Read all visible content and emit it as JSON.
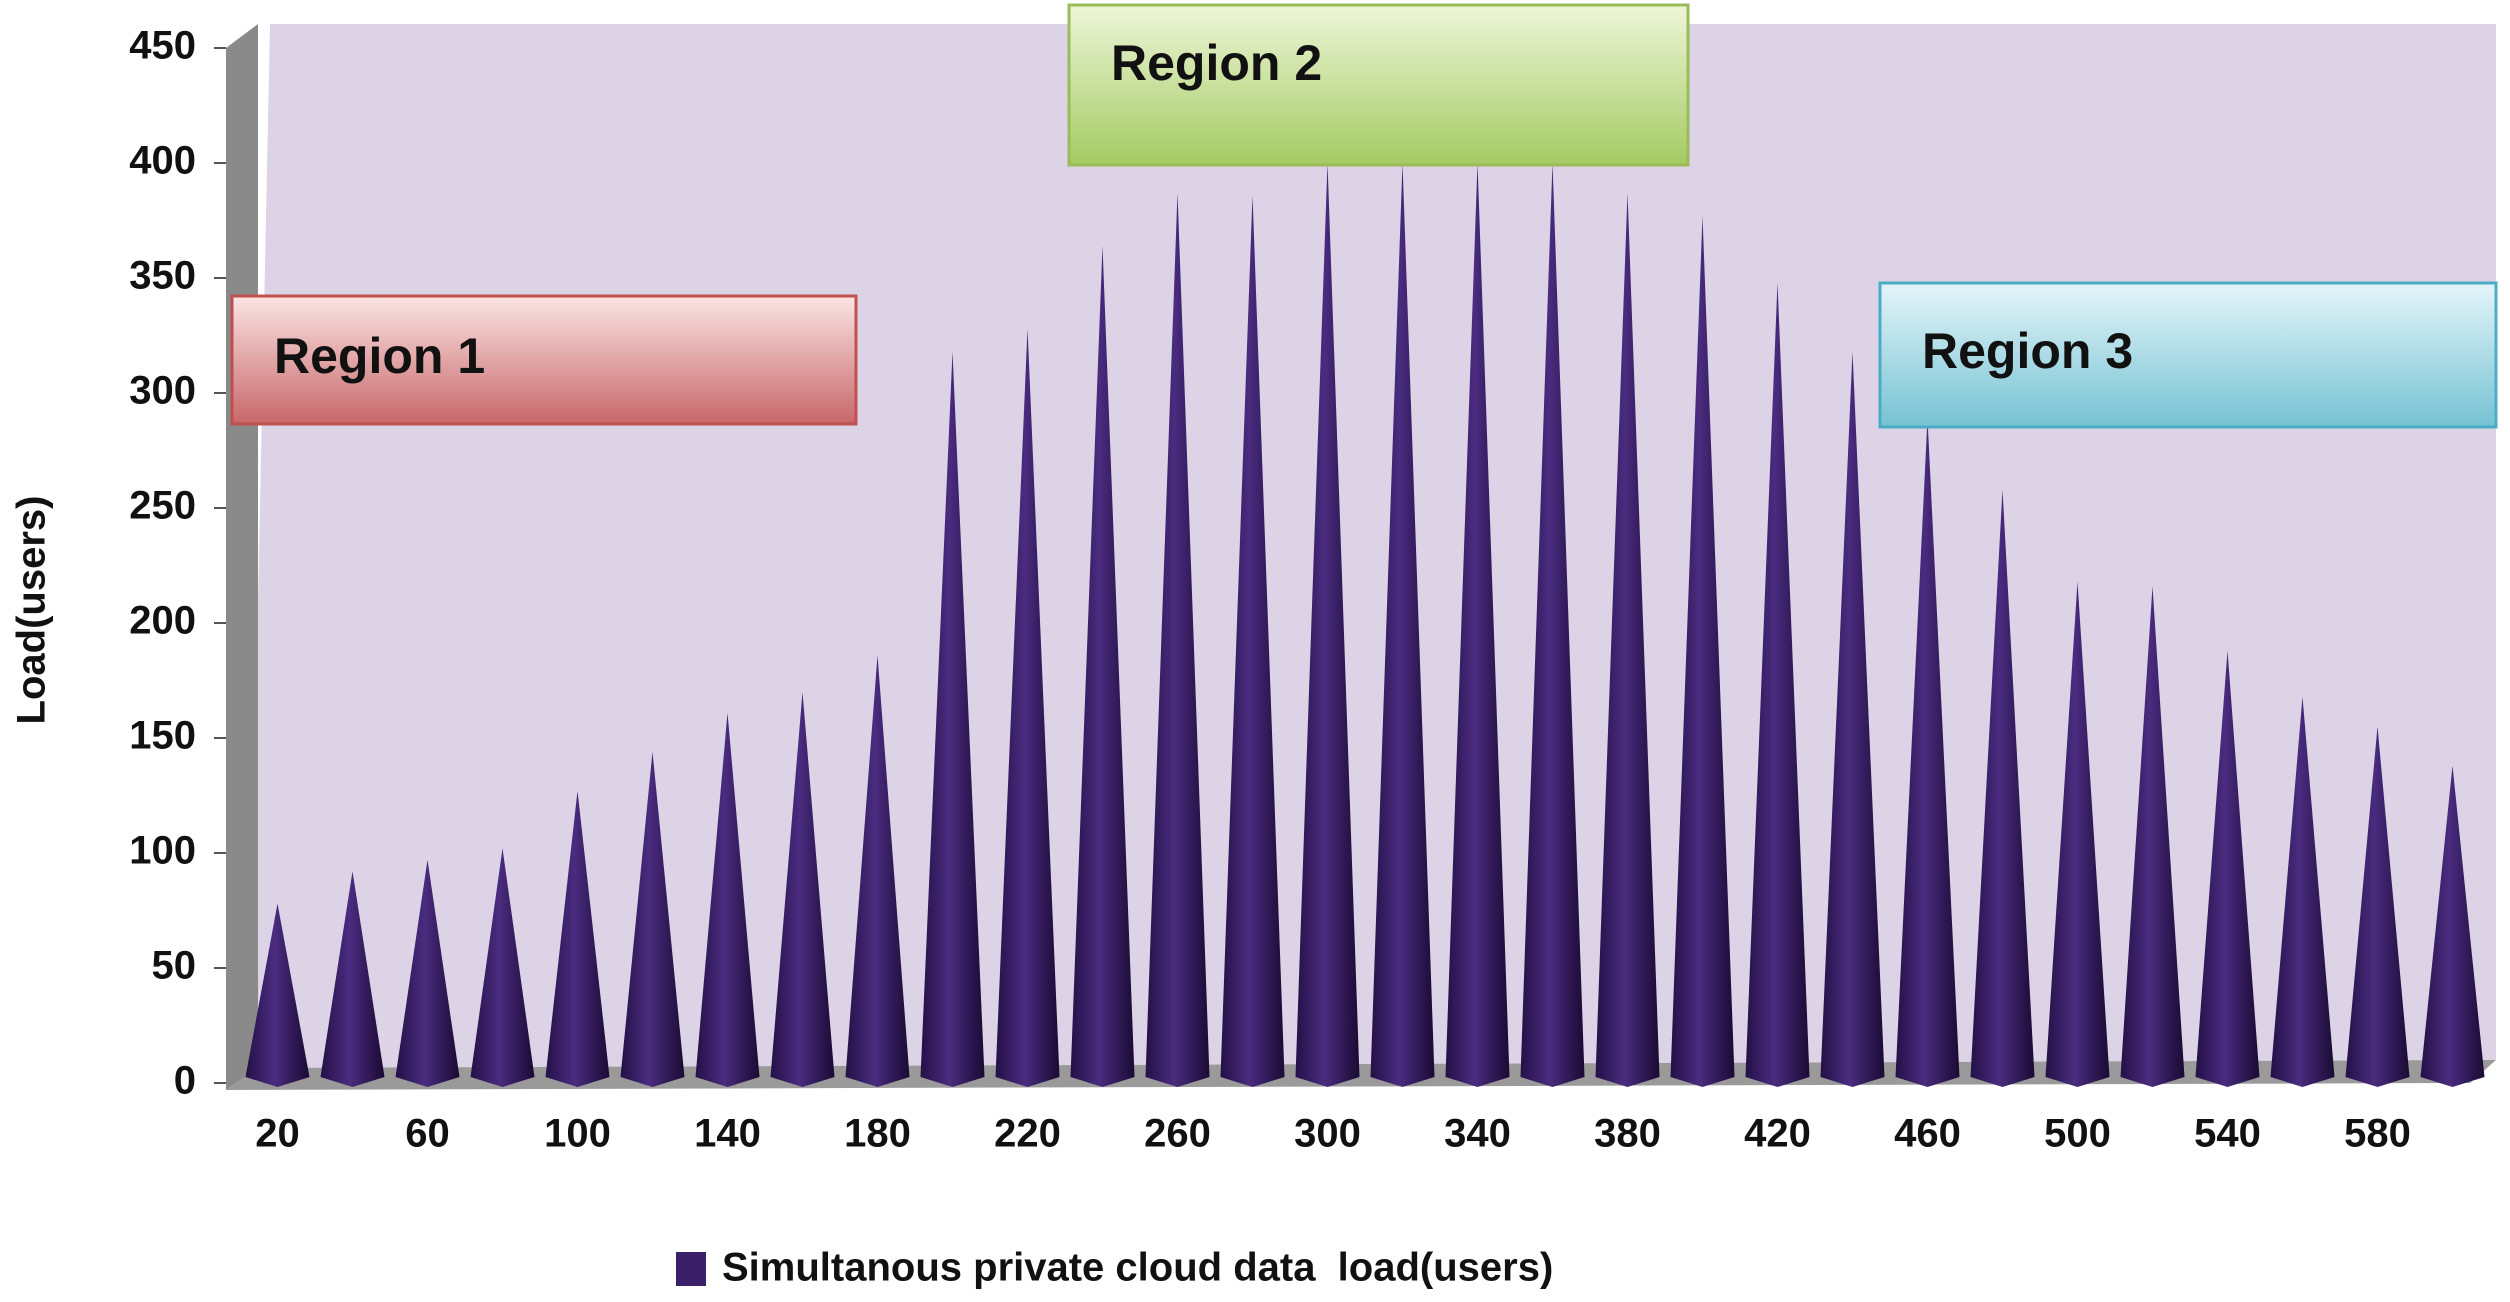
{
  "chart_data": {
    "type": "bar",
    "y_label": "Load(users)",
    "categories": [
      20,
      null,
      60,
      null,
      100,
      null,
      140,
      null,
      180,
      null,
      220,
      null,
      260,
      null,
      300,
      null,
      340,
      null,
      380,
      null,
      420,
      null,
      460,
      null,
      500,
      null,
      540,
      null,
      580,
      null
    ],
    "series": [
      {
        "name": "Simultanous private cloud data  load(users)",
        "color": "#3b2068",
        "values": [
          78,
          92,
          97,
          102,
          127,
          144,
          161,
          170,
          186,
          318,
          328,
          364,
          387,
          386,
          400,
          400,
          400,
          400,
          387,
          377,
          348,
          318,
          289,
          258,
          218,
          216,
          188,
          168,
          155,
          138
        ]
      }
    ],
    "ylim": [
      0,
      450
    ],
    "yticks": [
      0,
      50,
      100,
      150,
      200,
      250,
      300,
      350,
      400,
      450
    ],
    "annotations": [
      "Region 1",
      "Region 2",
      "Region 3"
    ]
  }
}
